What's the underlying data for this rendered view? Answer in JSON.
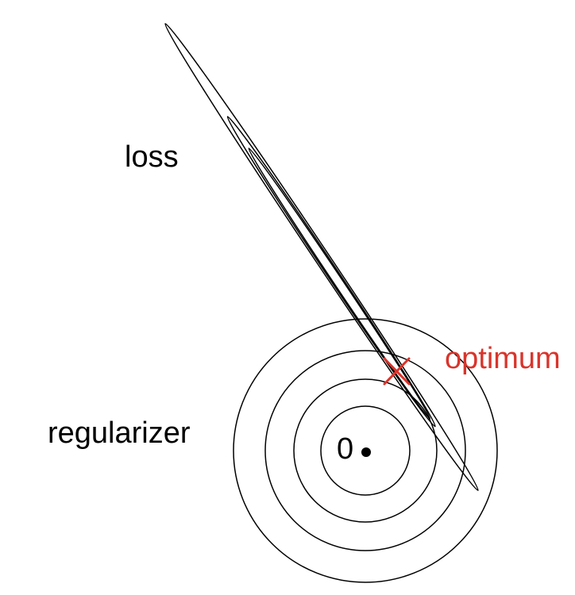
{
  "labels": {
    "loss": "loss",
    "regularizer": "regularizer",
    "optimum": "optimum",
    "origin": "0"
  },
  "colors": {
    "ink": "#000000",
    "optimum": "#d9342b",
    "background": "#ffffff"
  },
  "icons": {
    "optimum_marker": "cross-mark-icon",
    "origin_marker": "dot-icon"
  }
}
